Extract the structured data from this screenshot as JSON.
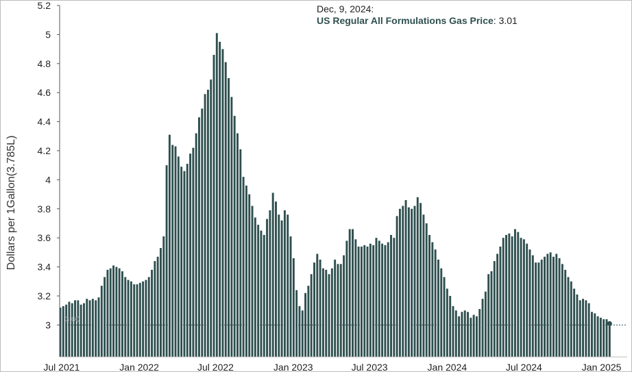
{
  "tooltip": {
    "date": "Dec, 9, 2024:",
    "series_name": "US Regular All Formulations Gas Price",
    "value": "3.01"
  },
  "reference_line_label": "3.00",
  "colors": {
    "bar": "#2f4f4f",
    "axis": "#555555",
    "reference_line": "#2f4f4f"
  },
  "chart_data": {
    "type": "bar",
    "title": "",
    "xlabel": "",
    "ylabel": "Dollars per 1Gallon(3.785L)",
    "ylim": [
      2.78,
      5.2
    ],
    "y_ticks": [
      3,
      3.2,
      3.4,
      3.6,
      3.8,
      4,
      4.2,
      4.4,
      4.6,
      4.8,
      5,
      5.2
    ],
    "x_start": "2021-06-28",
    "x_end": "2024-12-31",
    "x_ticks": [
      {
        "label": "Jul 2021",
        "date": "2021-07-01"
      },
      {
        "label": "Jan 2022",
        "date": "2022-01-01"
      },
      {
        "label": "Jul 2022",
        "date": "2022-07-01"
      },
      {
        "label": "Jan 2023",
        "date": "2023-01-01"
      },
      {
        "label": "Jul 2023",
        "date": "2023-07-01"
      },
      {
        "label": "Jan 2024",
        "date": "2024-01-01"
      },
      {
        "label": "Jul 2024",
        "date": "2024-07-01"
      },
      {
        "label": "Jan 2025",
        "date": "2025-01-01"
      }
    ],
    "reference_line": 3.0,
    "grid": false,
    "legend": "none",
    "series": [
      {
        "start_date": "2021-06-28",
        "frequency": "weekly",
        "values": [
          3.12,
          3.13,
          3.14,
          3.16,
          3.15,
          3.17,
          3.17,
          3.14,
          3.15,
          3.18,
          3.17,
          3.18,
          3.17,
          3.19,
          3.27,
          3.33,
          3.38,
          3.39,
          3.41,
          3.4,
          3.39,
          3.37,
          3.33,
          3.31,
          3.3,
          3.28,
          3.28,
          3.29,
          3.3,
          3.31,
          3.33,
          3.38,
          3.44,
          3.47,
          3.53,
          3.61,
          4.1,
          4.31,
          4.24,
          4.23,
          4.16,
          4.09,
          4.06,
          4.11,
          4.18,
          4.22,
          4.32,
          4.43,
          4.49,
          4.59,
          4.62,
          4.69,
          4.86,
          5.01,
          4.95,
          4.9,
          4.81,
          4.7,
          4.57,
          4.44,
          4.32,
          4.21,
          4.02,
          3.96,
          3.9,
          3.82,
          3.74,
          3.69,
          3.65,
          3.62,
          3.73,
          3.79,
          3.91,
          3.85,
          3.76,
          3.72,
          3.79,
          3.76,
          3.61,
          3.46,
          3.24,
          3.13,
          3.1,
          3.22,
          3.27,
          3.35,
          3.43,
          3.49,
          3.45,
          3.39,
          3.38,
          3.35,
          3.39,
          3.45,
          3.42,
          3.42,
          3.48,
          3.58,
          3.66,
          3.66,
          3.59,
          3.54,
          3.54,
          3.55,
          3.54,
          3.56,
          3.55,
          3.6,
          3.58,
          3.56,
          3.55,
          3.57,
          3.62,
          3.6,
          3.75,
          3.8,
          3.82,
          3.86,
          3.81,
          3.8,
          3.82,
          3.88,
          3.84,
          3.76,
          3.7,
          3.62,
          3.57,
          3.52,
          3.45,
          3.39,
          3.33,
          3.25,
          3.2,
          3.13,
          3.1,
          3.06,
          3.09,
          3.1,
          3.09,
          3.05,
          3.07,
          3.06,
          3.11,
          3.18,
          3.23,
          3.35,
          3.37,
          3.44,
          3.49,
          3.54,
          3.6,
          3.62,
          3.63,
          3.61,
          3.66,
          3.64,
          3.6,
          3.59,
          3.56,
          3.52,
          3.48,
          3.43,
          3.43,
          3.45,
          3.47,
          3.49,
          3.5,
          3.47,
          3.49,
          3.46,
          3.42,
          3.38,
          3.33,
          3.3,
          3.25,
          3.21,
          3.17,
          3.18,
          3.17,
          3.15,
          3.09,
          3.08,
          3.06,
          3.05,
          3.04,
          3.04,
          3.01
        ]
      }
    ]
  }
}
